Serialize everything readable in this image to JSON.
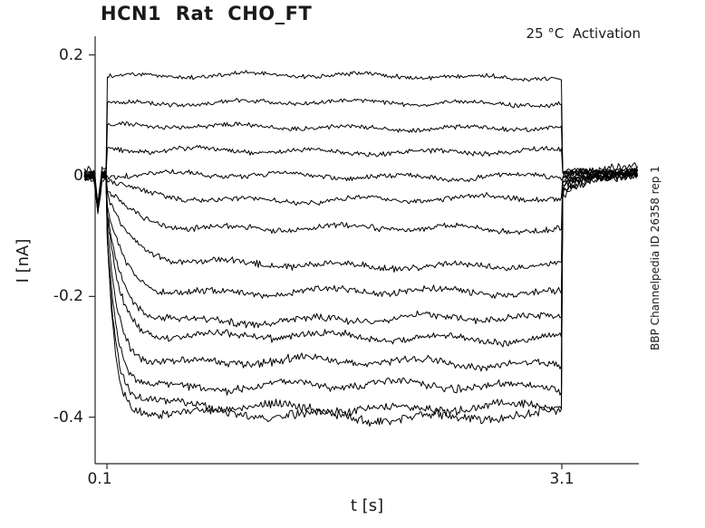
{
  "figure": {
    "title": "HCN1  Rat  CHO_FT",
    "top_right_annotation": "25 °C  Activation",
    "side_label": "BBP Channelpedia ID 26358 rep 1"
  },
  "colors": {
    "trace": "#000000",
    "axis": "#262626",
    "text": "#1a1a1a"
  },
  "chart_data": {
    "type": "line",
    "title": "HCN1  Rat  CHO_FT",
    "xlabel": "t [s]",
    "ylabel": "I [nA]",
    "x_ticks": [
      0.1,
      3.1
    ],
    "x_tick_labels": [
      "0.1",
      "3.1"
    ],
    "y_ticks": [
      0.2,
      0,
      -0.2,
      -0.4
    ],
    "y_tick_labels": [
      "0.2",
      "0",
      "-0.2",
      "-0.4"
    ],
    "xlim": [
      0.022,
      3.608
    ],
    "ylim": [
      -0.477,
      0.231
    ],
    "grid": false,
    "legend": "none",
    "annotation": "25 °C  Activation",
    "watermark": "BBP Channelpedia ID 26358 rep 1",
    "protocol": {
      "baseline_start_s": -0.05,
      "step_on_s": 0.1,
      "step_off_s": 3.1,
      "sweep_end_s": 3.6,
      "holding_current_nA": 0,
      "cap_spike_nA": -0.058,
      "cap_spike_s": 0.04,
      "cap_spike_halfwidth_s": 0.025
    },
    "sweeps": {
      "count": 15,
      "steady_levels_nA": [
        0.165,
        0.12,
        0.08,
        0.041,
        0.0,
        -0.039,
        -0.089,
        -0.147,
        -0.194,
        -0.238,
        -0.268,
        -0.31,
        -0.349,
        -0.382,
        -0.396
      ],
      "activation_tau_s": [
        0.02,
        0.02,
        0.02,
        0.02,
        0.02,
        0.28,
        0.22,
        0.16,
        0.13,
        0.11,
        0.09,
        0.08,
        0.07,
        0.06,
        0.05
      ],
      "instant_fraction_of_steady": 0.25,
      "noise_amp_nA": [
        0.0045,
        0.0047,
        0.0049,
        0.0051,
        0.0053,
        0.0056,
        0.0059,
        0.0063,
        0.0067,
        0.0071,
        0.0075,
        0.0079,
        0.0083,
        0.0088,
        0.0092
      ],
      "tail": {
        "end_level_nA": 0.005,
        "tau_s": 0.12,
        "start_fraction_of_steady": 0.07,
        "start_min_nA": -0.028,
        "start_max_nA": 0.008
      }
    }
  }
}
